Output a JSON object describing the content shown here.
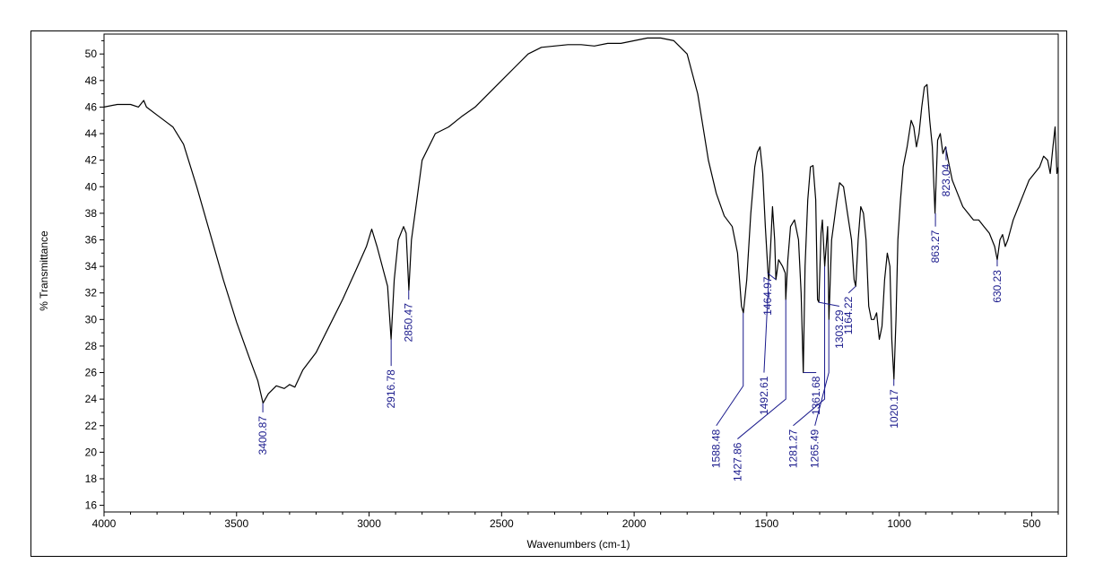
{
  "chart_data": {
    "type": "line",
    "title": "",
    "xlabel": "Wavenumbers (cm-1)",
    "ylabel": "% Transmittance",
    "xlim": [
      4000,
      400
    ],
    "ylim": [
      15.5,
      51.5
    ],
    "x_ticks": [
      "4000",
      "3500",
      "3000",
      "2500",
      "2000",
      "1500",
      "1000",
      "500"
    ],
    "y_ticks": [
      "16",
      "18",
      "20",
      "22",
      "24",
      "26",
      "28",
      "30",
      "32",
      "34",
      "36",
      "38",
      "40",
      "42",
      "44",
      "46",
      "48",
      "50"
    ],
    "grid": false,
    "series": [
      {
        "name": "",
        "color": "#000000",
        "points": [
          [
            4000,
            46.0
          ],
          [
            3950,
            46.2
          ],
          [
            3900,
            46.2
          ],
          [
            3870,
            46.0
          ],
          [
            3850,
            46.5
          ],
          [
            3840,
            46.0
          ],
          [
            3800,
            45.4
          ],
          [
            3760,
            44.8
          ],
          [
            3740,
            44.5
          ],
          [
            3700,
            43.2
          ],
          [
            3650,
            40.0
          ],
          [
            3600,
            36.5
          ],
          [
            3550,
            33.0
          ],
          [
            3500,
            29.8
          ],
          [
            3450,
            27.0
          ],
          [
            3420,
            25.4
          ],
          [
            3400,
            23.7
          ],
          [
            3380,
            24.4
          ],
          [
            3350,
            25.0
          ],
          [
            3320,
            24.8
          ],
          [
            3300,
            25.1
          ],
          [
            3280,
            24.9
          ],
          [
            3250,
            26.2
          ],
          [
            3200,
            27.5
          ],
          [
            3150,
            29.5
          ],
          [
            3100,
            31.5
          ],
          [
            3050,
            33.7
          ],
          [
            3010,
            35.5
          ],
          [
            2990,
            36.8
          ],
          [
            2970,
            35.5
          ],
          [
            2950,
            34.0
          ],
          [
            2930,
            32.5
          ],
          [
            2917,
            28.5
          ],
          [
            2905,
            33.0
          ],
          [
            2890,
            36.0
          ],
          [
            2870,
            37.0
          ],
          [
            2860,
            36.5
          ],
          [
            2850,
            32.2
          ],
          [
            2840,
            36.0
          ],
          [
            2820,
            39.0
          ],
          [
            2800,
            42.0
          ],
          [
            2750,
            44.0
          ],
          [
            2700,
            44.5
          ],
          [
            2650,
            45.3
          ],
          [
            2600,
            46.0
          ],
          [
            2550,
            47.0
          ],
          [
            2500,
            48.0
          ],
          [
            2450,
            49.0
          ],
          [
            2400,
            50.0
          ],
          [
            2350,
            50.5
          ],
          [
            2300,
            50.6
          ],
          [
            2250,
            50.7
          ],
          [
            2200,
            50.7
          ],
          [
            2150,
            50.6
          ],
          [
            2100,
            50.8
          ],
          [
            2050,
            50.8
          ],
          [
            2000,
            51.0
          ],
          [
            1950,
            51.2
          ],
          [
            1900,
            51.2
          ],
          [
            1850,
            51.0
          ],
          [
            1800,
            50.0
          ],
          [
            1760,
            47.0
          ],
          [
            1720,
            42.0
          ],
          [
            1690,
            39.5
          ],
          [
            1660,
            37.8
          ],
          [
            1630,
            37.0
          ],
          [
            1610,
            35.0
          ],
          [
            1595,
            31.0
          ],
          [
            1588,
            30.5
          ],
          [
            1575,
            33.0
          ],
          [
            1560,
            38.0
          ],
          [
            1545,
            41.5
          ],
          [
            1535,
            42.6
          ],
          [
            1525,
            43.0
          ],
          [
            1515,
            41.0
          ],
          [
            1505,
            37.0
          ],
          [
            1495,
            33.5
          ],
          [
            1492,
            33.0
          ],
          [
            1485,
            35.5
          ],
          [
            1478,
            38.5
          ],
          [
            1470,
            36.0
          ],
          [
            1465,
            33.0
          ],
          [
            1455,
            34.5
          ],
          [
            1440,
            34.0
          ],
          [
            1430,
            33.5
          ],
          [
            1428,
            31.5
          ],
          [
            1420,
            34.5
          ],
          [
            1410,
            37.0
          ],
          [
            1395,
            37.5
          ],
          [
            1380,
            36.0
          ],
          [
            1370,
            32.0
          ],
          [
            1362,
            26.0
          ],
          [
            1355,
            34.0
          ],
          [
            1345,
            39.0
          ],
          [
            1335,
            41.5
          ],
          [
            1325,
            41.6
          ],
          [
            1315,
            39.0
          ],
          [
            1308,
            31.5
          ],
          [
            1303,
            31.3
          ],
          [
            1295,
            36.5
          ],
          [
            1290,
            37.5
          ],
          [
            1281,
            34.0
          ],
          [
            1270,
            37.0
          ],
          [
            1265,
            30.0
          ],
          [
            1255,
            36.0
          ],
          [
            1245,
            37.5
          ],
          [
            1235,
            39.0
          ],
          [
            1225,
            40.3
          ],
          [
            1210,
            40.0
          ],
          [
            1195,
            38.0
          ],
          [
            1180,
            36.0
          ],
          [
            1170,
            33.0
          ],
          [
            1164,
            32.5
          ],
          [
            1155,
            36.0
          ],
          [
            1145,
            38.5
          ],
          [
            1135,
            38.0
          ],
          [
            1125,
            36.0
          ],
          [
            1115,
            31.0
          ],
          [
            1105,
            30.0
          ],
          [
            1095,
            30.0
          ],
          [
            1085,
            30.5
          ],
          [
            1075,
            28.5
          ],
          [
            1065,
            29.5
          ],
          [
            1055,
            33.0
          ],
          [
            1045,
            35.0
          ],
          [
            1035,
            34.0
          ],
          [
            1028,
            28.5
          ],
          [
            1020,
            25.5
          ],
          [
            1012,
            30.0
          ],
          [
            1005,
            36.0
          ],
          [
            995,
            39.0
          ],
          [
            985,
            41.5
          ],
          [
            970,
            43.0
          ],
          [
            955,
            45.0
          ],
          [
            945,
            44.5
          ],
          [
            935,
            43.0
          ],
          [
            925,
            44.0
          ],
          [
            915,
            46.0
          ],
          [
            905,
            47.5
          ],
          [
            895,
            47.7
          ],
          [
            885,
            45.0
          ],
          [
            875,
            43.0
          ],
          [
            865,
            38.0
          ],
          [
            855,
            43.5
          ],
          [
            845,
            44.0
          ],
          [
            835,
            42.5
          ],
          [
            825,
            43.0
          ],
          [
            815,
            42.0
          ],
          [
            800,
            40.5
          ],
          [
            780,
            39.5
          ],
          [
            760,
            38.5
          ],
          [
            740,
            38.0
          ],
          [
            720,
            37.5
          ],
          [
            700,
            37.5
          ],
          [
            680,
            37.0
          ],
          [
            660,
            36.5
          ],
          [
            640,
            35.5
          ],
          [
            630,
            34.5
          ],
          [
            620,
            36.0
          ],
          [
            610,
            36.4
          ],
          [
            600,
            35.5
          ],
          [
            590,
            36.0
          ],
          [
            570,
            37.5
          ],
          [
            550,
            38.5
          ],
          [
            530,
            39.5
          ],
          [
            510,
            40.5
          ],
          [
            490,
            41.0
          ],
          [
            470,
            41.5
          ],
          [
            455,
            42.3
          ],
          [
            440,
            42.0
          ],
          [
            430,
            41.0
          ],
          [
            420,
            43.0
          ],
          [
            412,
            44.5
          ],
          [
            405,
            41.0
          ],
          [
            400,
            41.5
          ]
        ]
      }
    ],
    "annotations": [
      {
        "label": "3400.87",
        "x": 3400.87,
        "peak_y": 23.7,
        "label_anchor_y": 23,
        "label_x": 3400.87
      },
      {
        "label": "2916.78",
        "x": 2916.78,
        "peak_y": 28.5,
        "label_anchor_y": 26.5,
        "label_x": 2916.78
      },
      {
        "label": "2850.47",
        "x": 2850.47,
        "peak_y": 32.2,
        "label_anchor_y": 31.5,
        "label_x": 2850.47
      },
      {
        "label": "1588.48",
        "x": 1588.48,
        "peak_y": 30.5,
        "label_anchor_y": 22,
        "label_x": 1690,
        "line_bend_y": 25
      },
      {
        "label": "1492.61",
        "x": 1492.61,
        "peak_y": 33.0,
        "label_anchor_y": 26,
        "label_x": 1510
      },
      {
        "label": "1464.97",
        "x": 1464.97,
        "peak_y": 33.0,
        "label_anchor_y": 33.5,
        "label_x": 1497
      },
      {
        "label": "1427.86",
        "x": 1427.86,
        "peak_y": 31.5,
        "label_anchor_y": 21,
        "label_x": 1610,
        "line_bend_y": 24
      },
      {
        "label": "1361.68",
        "x": 1361.68,
        "peak_y": 26.0,
        "label_anchor_y": 26,
        "label_x": 1313
      },
      {
        "label": "1303.29",
        "x": 1303.29,
        "peak_y": 31.3,
        "label_anchor_y": 31,
        "label_x": 1226
      },
      {
        "label": "1281.27",
        "x": 1281.27,
        "peak_y": 34.0,
        "label_anchor_y": 22,
        "label_x": 1400,
        "line_bend_y": 24
      },
      {
        "label": "1265.49",
        "x": 1265.49,
        "peak_y": 30.0,
        "label_anchor_y": 22,
        "label_x": 1318,
        "line_bend_y": 26
      },
      {
        "label": "1164.22",
        "x": 1164.22,
        "peak_y": 32.5,
        "label_anchor_y": 32,
        "label_x": 1191
      },
      {
        "label": "1020.17",
        "x": 1020.17,
        "peak_y": 25.5,
        "label_anchor_y": 25,
        "label_x": 1020
      },
      {
        "label": "863.27",
        "x": 863.27,
        "peak_y": 38.0,
        "label_anchor_y": 37,
        "label_x": 863.27
      },
      {
        "label": "823.04",
        "x": 823.04,
        "peak_y": 43.0,
        "label_anchor_y": 42.0,
        "label_x": 823.04
      },
      {
        "label": "630.23",
        "x": 630.23,
        "peak_y": 34.5,
        "label_anchor_y": 34,
        "label_x": 630.23
      }
    ],
    "colors": {
      "spectrum": "#000000",
      "annotation": "#1a1a8c",
      "axis": "#000000"
    }
  }
}
